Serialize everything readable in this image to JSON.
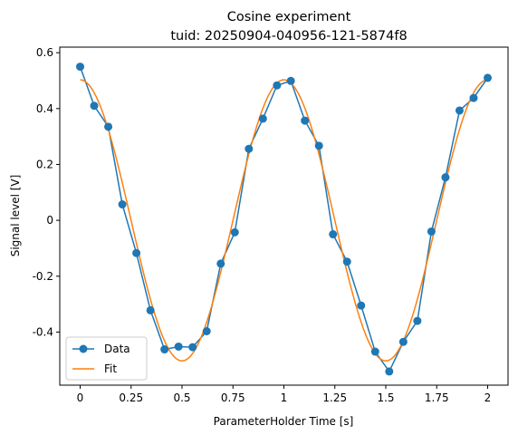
{
  "chart_data": {
    "type": "line",
    "title": "Cosine experiment",
    "subtitle": "tuid: 20250904-040956-121-5874f8",
    "xlabel": "ParameterHolder Time [s]",
    "ylabel": "Signal level [V]",
    "xlim": [
      -0.1,
      2.1
    ],
    "ylim": [
      -0.59,
      0.62
    ],
    "x_ticks": [
      {
        "value": 0,
        "label": "0"
      },
      {
        "value": 0.25,
        "label": "0.25"
      },
      {
        "value": 0.5,
        "label": "0.5"
      },
      {
        "value": 0.75,
        "label": "0.75"
      },
      {
        "value": 1,
        "label": "1"
      },
      {
        "value": 1.25,
        "label": "1.25"
      },
      {
        "value": 1.5,
        "label": "1.5"
      },
      {
        "value": 1.75,
        "label": "1.75"
      },
      {
        "value": 2,
        "label": "2"
      }
    ],
    "y_ticks": [
      {
        "value": -0.4,
        "label": "-0.4"
      },
      {
        "value": -0.2,
        "label": "-0.2"
      },
      {
        "value": 0,
        "label": "0"
      },
      {
        "value": 0.2,
        "label": "0.2"
      },
      {
        "value": 0.4,
        "label": "0.4"
      },
      {
        "value": 0.6,
        "label": "0.6"
      }
    ],
    "grid": false,
    "legend_position": "lower-left",
    "series": [
      {
        "name": "Data",
        "type": "line-markers",
        "color": "#1f77b4",
        "x": [
          0,
          0.069,
          0.138,
          0.207,
          0.276,
          0.345,
          0.414,
          0.483,
          0.552,
          0.621,
          0.69,
          0.759,
          0.828,
          0.897,
          0.966,
          1.034,
          1.103,
          1.172,
          1.241,
          1.31,
          1.379,
          1.448,
          1.517,
          1.586,
          1.655,
          1.724,
          1.793,
          1.862,
          1.931,
          2.0
        ],
        "y": [
          0.55,
          0.41,
          0.335,
          0.057,
          -0.117,
          -0.322,
          -0.462,
          -0.452,
          -0.454,
          -0.397,
          -0.155,
          -0.043,
          0.256,
          0.364,
          0.483,
          0.499,
          0.357,
          0.267,
          -0.05,
          -0.148,
          -0.305,
          -0.47,
          -0.541,
          -0.435,
          -0.36,
          -0.04,
          0.154,
          0.393,
          0.438,
          0.51
        ]
      },
      {
        "name": "Fit",
        "type": "line",
        "color": "#ff7f0e",
        "model": {
          "amplitude": 0.503,
          "frequency": 1.0,
          "phase": 0.0,
          "offset": 0.0
        },
        "x_range": [
          0,
          2
        ]
      }
    ]
  }
}
